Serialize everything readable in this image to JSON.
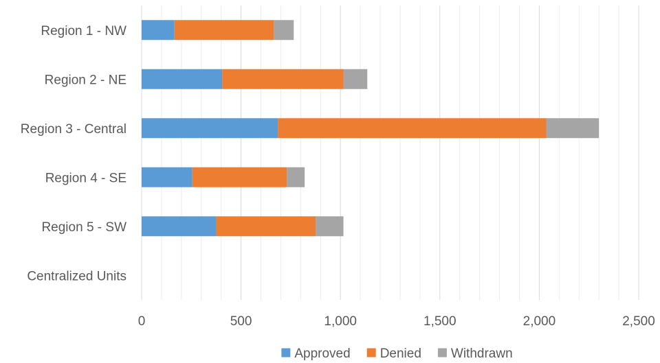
{
  "chart_data": {
    "type": "bar",
    "orientation": "horizontal",
    "stacked": true,
    "categories": [
      "Region 1 - NW",
      "Region 2 - NE",
      "Region 3 - Central",
      "Region 4 - SE",
      "Region 5 - SW",
      "Centralized Units"
    ],
    "series": [
      {
        "name": "Approved",
        "color": "#5b9bd5",
        "values": [
          165,
          405,
          685,
          255,
          375,
          0
        ]
      },
      {
        "name": "Denied",
        "color": "#ed7d31",
        "values": [
          500,
          610,
          1350,
          475,
          500,
          0
        ]
      },
      {
        "name": "Withdrawn",
        "color": "#a5a5a5",
        "values": [
          100,
          120,
          265,
          90,
          140,
          0
        ]
      }
    ],
    "xlim": [
      0,
      2500
    ],
    "x_ticks": [
      0,
      500,
      1000,
      1500,
      2000,
      2500
    ],
    "x_tick_labels": [
      "0",
      "500",
      "1,000",
      "1,500",
      "2,000",
      "2,500"
    ],
    "x_minor_step": 100,
    "grid": true,
    "legend_position": "bottom",
    "title": "",
    "xlabel": "",
    "ylabel": ""
  }
}
